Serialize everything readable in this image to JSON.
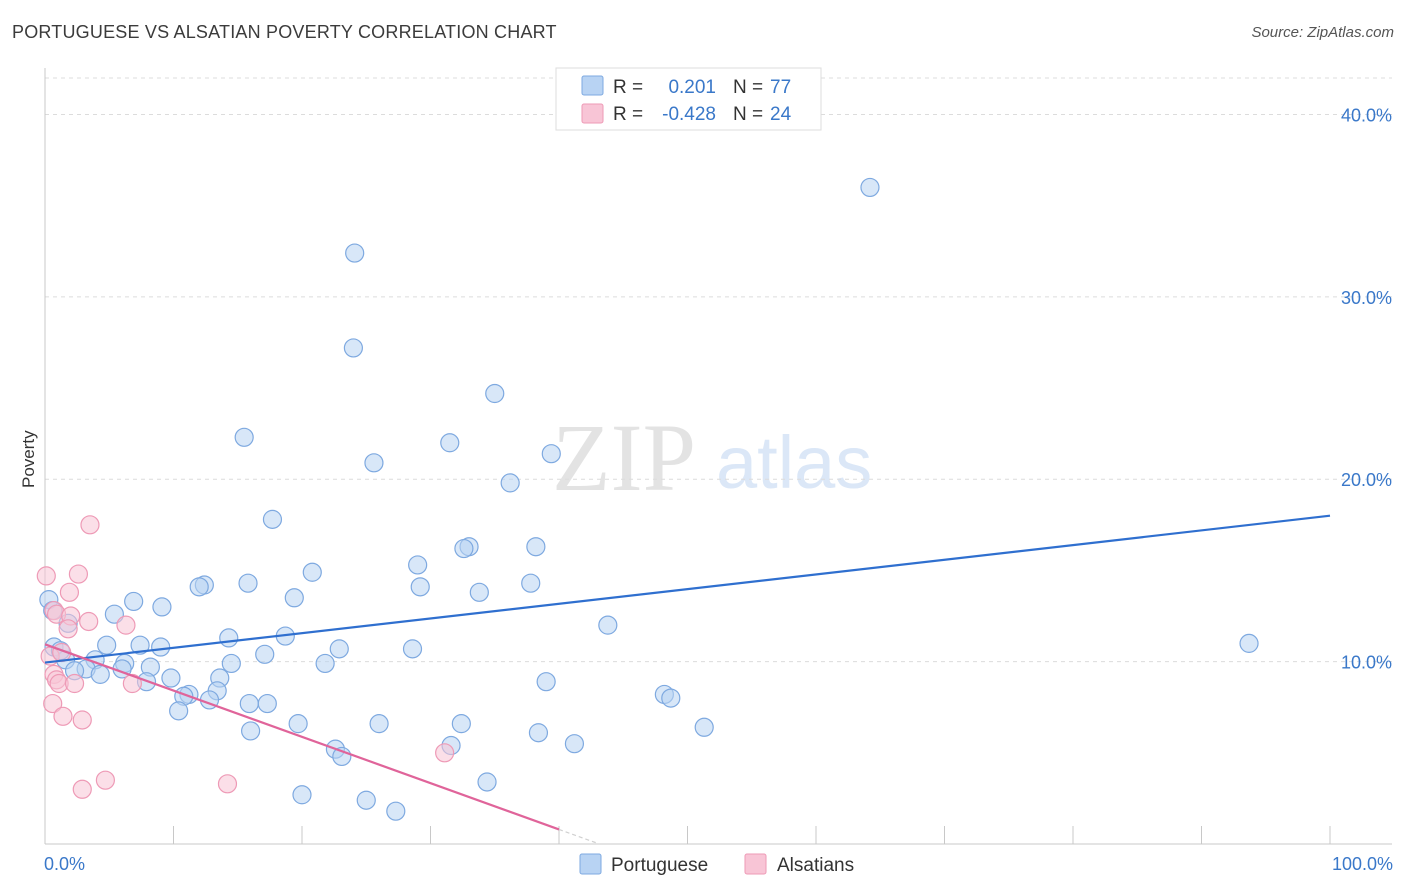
{
  "title": "PORTUGUESE VS ALSATIAN POVERTY CORRELATION CHART",
  "source": "Source: ZipAtlas.com",
  "watermark": {
    "zip": "ZIP",
    "atlas": "atlas"
  },
  "colors": {
    "portuguese_fill": "#b8d3f3",
    "portuguese_stroke": "#7ea9e0",
    "portuguese_line": "#2f6fcf",
    "alsatian_fill": "#f8c5d6",
    "alsatian_stroke": "#ee9ab6",
    "alsatian_line": "#e0649a",
    "label_blue": "#3a78c9"
  },
  "chart_data": {
    "type": "scatter",
    "title": "PORTUGUESE VS ALSATIAN POVERTY CORRELATION CHART",
    "xlabel": "",
    "ylabel": "Poverty",
    "xlim": [
      0,
      100
    ],
    "ylim": [
      0,
      42
    ],
    "x_tick_labels": [
      "0.0%",
      "100.0%"
    ],
    "y_ticks": [
      10,
      20,
      30,
      40
    ],
    "y_tick_labels": [
      "10.0%",
      "20.0%",
      "30.0%",
      "40.0%"
    ],
    "grid": true,
    "legend_stats": [
      {
        "r_label": "R =",
        "r_value": "0.201",
        "n_label": "N =",
        "n_value": "77"
      },
      {
        "r_label": "R =",
        "r_value": "-0.428",
        "n_label": "N =",
        "n_value": "24"
      }
    ],
    "series": [
      {
        "name": "Portuguese",
        "trend": {
          "x": [
            0,
            100
          ],
          "y": [
            9.95,
            18.0
          ]
        },
        "points": [
          [
            64.2,
            36.0
          ],
          [
            24.1,
            32.4
          ],
          [
            24.0,
            27.2
          ],
          [
            35.0,
            24.7
          ],
          [
            15.5,
            22.3
          ],
          [
            31.5,
            22.0
          ],
          [
            39.4,
            21.4
          ],
          [
            25.6,
            20.9
          ],
          [
            36.2,
            19.8
          ],
          [
            17.7,
            17.8
          ],
          [
            33.0,
            16.3
          ],
          [
            32.6,
            16.2
          ],
          [
            38.2,
            16.3
          ],
          [
            29.0,
            15.3
          ],
          [
            20.8,
            14.9
          ],
          [
            15.8,
            14.3
          ],
          [
            29.2,
            14.1
          ],
          [
            37.8,
            14.3
          ],
          [
            12.4,
            14.2
          ],
          [
            12.0,
            14.1
          ],
          [
            33.8,
            13.8
          ],
          [
            19.4,
            13.5
          ],
          [
            6.9,
            13.3
          ],
          [
            9.1,
            13.0
          ],
          [
            5.4,
            12.6
          ],
          [
            1.8,
            12.1
          ],
          [
            43.8,
            12.0
          ],
          [
            14.3,
            11.3
          ],
          [
            18.7,
            11.4
          ],
          [
            0.7,
            10.8
          ],
          [
            4.8,
            10.9
          ],
          [
            7.4,
            10.9
          ],
          [
            9.0,
            10.8
          ],
          [
            22.9,
            10.7
          ],
          [
            28.6,
            10.7
          ],
          [
            93.7,
            11.0
          ],
          [
            17.1,
            10.4
          ],
          [
            1.6,
            10.1
          ],
          [
            3.9,
            10.1
          ],
          [
            6.2,
            9.9
          ],
          [
            21.8,
            9.9
          ],
          [
            14.5,
            9.9
          ],
          [
            3.2,
            9.6
          ],
          [
            8.2,
            9.7
          ],
          [
            6.0,
            9.6
          ],
          [
            2.3,
            9.5
          ],
          [
            4.3,
            9.3
          ],
          [
            9.8,
            9.1
          ],
          [
            13.6,
            9.1
          ],
          [
            39.0,
            8.9
          ],
          [
            7.9,
            8.9
          ],
          [
            13.4,
            8.4
          ],
          [
            11.2,
            8.2
          ],
          [
            10.8,
            8.1
          ],
          [
            48.2,
            8.2
          ],
          [
            48.7,
            8.0
          ],
          [
            12.8,
            7.9
          ],
          [
            15.9,
            7.7
          ],
          [
            17.3,
            7.7
          ],
          [
            10.4,
            7.3
          ],
          [
            19.7,
            6.6
          ],
          [
            26.0,
            6.6
          ],
          [
            32.4,
            6.6
          ],
          [
            51.3,
            6.4
          ],
          [
            16.0,
            6.2
          ],
          [
            38.4,
            6.1
          ],
          [
            41.2,
            5.5
          ],
          [
            31.6,
            5.4
          ],
          [
            22.6,
            5.2
          ],
          [
            23.1,
            4.8
          ],
          [
            34.4,
            3.4
          ],
          [
            20.0,
            2.7
          ],
          [
            25.0,
            2.4
          ],
          [
            27.3,
            1.8
          ],
          [
            0.3,
            13.4
          ],
          [
            0.6,
            12.8
          ],
          [
            1.2,
            10.6
          ]
        ]
      },
      {
        "name": "Alsatians",
        "trend": {
          "x": [
            0,
            40
          ],
          "y": [
            10.95,
            0.8
          ]
        },
        "points": [
          [
            0.1,
            14.7
          ],
          [
            3.5,
            17.5
          ],
          [
            2.6,
            14.8
          ],
          [
            1.9,
            13.8
          ],
          [
            0.7,
            12.8
          ],
          [
            0.9,
            12.6
          ],
          [
            2.0,
            12.5
          ],
          [
            3.4,
            12.2
          ],
          [
            6.3,
            12.0
          ],
          [
            1.8,
            11.8
          ],
          [
            0.4,
            10.3
          ],
          [
            1.3,
            10.5
          ],
          [
            0.7,
            9.3
          ],
          [
            0.9,
            9.0
          ],
          [
            1.1,
            8.8
          ],
          [
            2.3,
            8.8
          ],
          [
            6.8,
            8.8
          ],
          [
            0.6,
            7.7
          ],
          [
            1.4,
            7.0
          ],
          [
            2.9,
            6.8
          ],
          [
            31.1,
            5.0
          ],
          [
            4.7,
            3.5
          ],
          [
            14.2,
            3.3
          ],
          [
            2.9,
            3.0
          ]
        ]
      }
    ]
  }
}
